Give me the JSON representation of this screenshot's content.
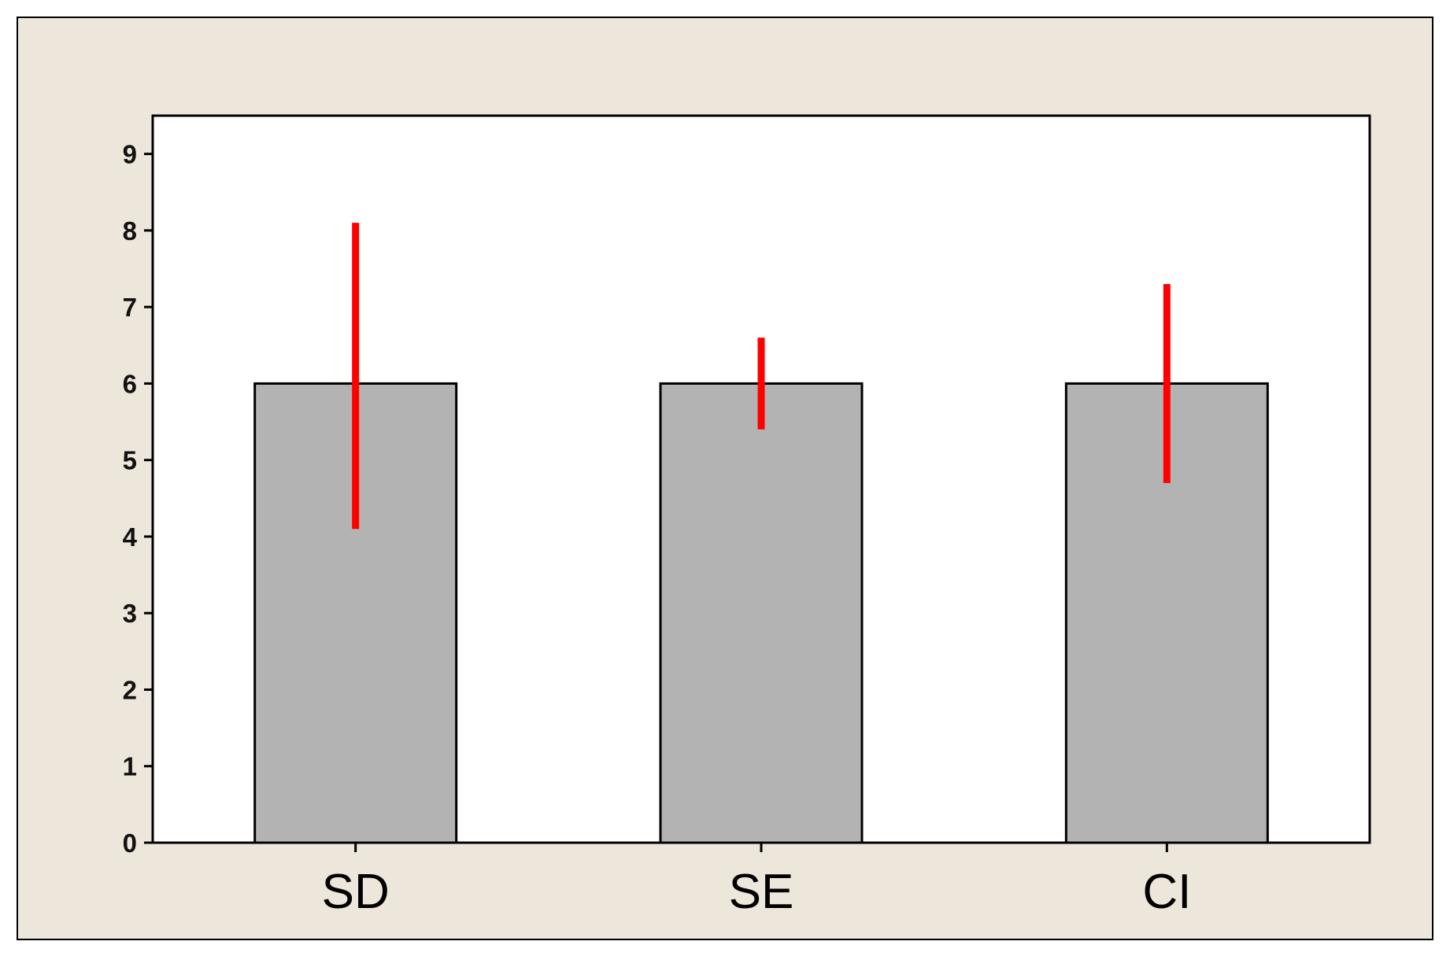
{
  "chart_data": {
    "type": "bar",
    "title": "",
    "xlabel": "",
    "ylabel": "",
    "categories": [
      "SD",
      "SE",
      "CI"
    ],
    "series": [
      {
        "values": [
          6,
          6,
          6
        ],
        "error_low": [
          4.1,
          5.4,
          4.7
        ],
        "error_high": [
          8.1,
          6.6,
          7.3
        ]
      }
    ],
    "ylim": [
      0,
      9.5
    ],
    "yticks": [
      "0",
      "1",
      "2",
      "3",
      "4",
      "5",
      "6",
      "7",
      "8",
      "9"
    ],
    "grid": false,
    "legend": "none",
    "colors": {
      "background": "#ede6da",
      "plot_area": "#ffffff",
      "bar_fill": "#b3b3b3",
      "bar_stroke": "#000000",
      "error_bar": "#ff0000"
    }
  }
}
